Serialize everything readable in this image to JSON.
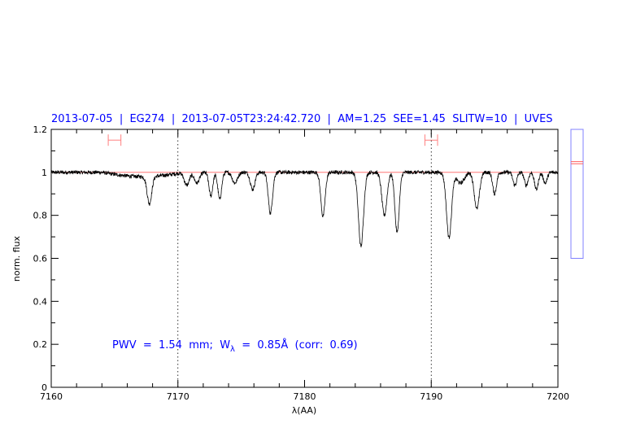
{
  "chart_data": {
    "type": "line",
    "title": "2013-07-05  |  EG274  |  2013-07-05T23:24:42.720  |  AM=1.25  SEE=1.45  SLITW=10  |  UVES",
    "xlabel": "λ(AA)",
    "ylabel": "norm. flux",
    "xlim": [
      7160,
      7200
    ],
    "ylim": [
      0,
      1.2
    ],
    "xticks": [
      "7160",
      "7170",
      "7180",
      "7190",
      "7200"
    ],
    "yticks": [
      "0",
      "0.2",
      "0.4",
      "0.6",
      "0.8",
      "1",
      "1.2"
    ],
    "grid": false,
    "continuum_level": 1.0,
    "reference_lines_x": [
      7170,
      7190
    ],
    "annotation": {
      "pwv": "PWV  =  1.54  mm;  W",
      "sub": "λ",
      "rest": "  =  0.85Å  (corr:  0.69)"
    },
    "absorption_lines": [
      {
        "center": 7167.75,
        "min_flux": 0.87,
        "width": 0.18
      },
      {
        "center": 7170.7,
        "min_flux": 0.94,
        "width": 0.2
      },
      {
        "center": 7171.5,
        "min_flux": 0.95,
        "width": 0.2
      },
      {
        "center": 7172.6,
        "min_flux": 0.89,
        "width": 0.15
      },
      {
        "center": 7173.3,
        "min_flux": 0.875,
        "width": 0.15
      },
      {
        "center": 7174.5,
        "min_flux": 0.95,
        "width": 0.2
      },
      {
        "center": 7175.9,
        "min_flux": 0.92,
        "width": 0.18
      },
      {
        "center": 7177.3,
        "min_flux": 0.81,
        "width": 0.17
      },
      {
        "center": 7181.45,
        "min_flux": 0.795,
        "width": 0.17
      },
      {
        "center": 7184.45,
        "min_flux": 0.655,
        "width": 0.2
      },
      {
        "center": 7186.3,
        "min_flux": 0.8,
        "width": 0.2
      },
      {
        "center": 7187.3,
        "min_flux": 0.72,
        "width": 0.17
      },
      {
        "center": 7191.4,
        "min_flux": 0.697,
        "width": 0.2
      },
      {
        "center": 7192.3,
        "min_flux": 0.95,
        "width": 0.3
      },
      {
        "center": 7193.6,
        "min_flux": 0.83,
        "width": 0.2
      },
      {
        "center": 7195.0,
        "min_flux": 0.9,
        "width": 0.15
      },
      {
        "center": 7196.6,
        "min_flux": 0.94,
        "width": 0.15
      },
      {
        "center": 7197.5,
        "min_flux": 0.94,
        "width": 0.15
      },
      {
        "center": 7198.3,
        "min_flux": 0.92,
        "width": 0.15
      },
      {
        "center": 7199.0,
        "min_flux": 0.95,
        "width": 0.15
      }
    ],
    "error_bars": [
      {
        "x_from": 7164.5,
        "x_to": 7165.5,
        "y": 1.15
      },
      {
        "x_from": 7189.5,
        "x_to": 7190.5,
        "y": 1.15
      }
    ],
    "side_panel": {
      "ylim": [
        0.6,
        1.2
      ],
      "markers": [
        1.05,
        1.04
      ]
    },
    "colors": {
      "spectrum": "#000000",
      "title": "#0000ff",
      "continuum": "#ff6060",
      "error_bar": "#ff8080",
      "side_panel": "#8080ff"
    }
  }
}
